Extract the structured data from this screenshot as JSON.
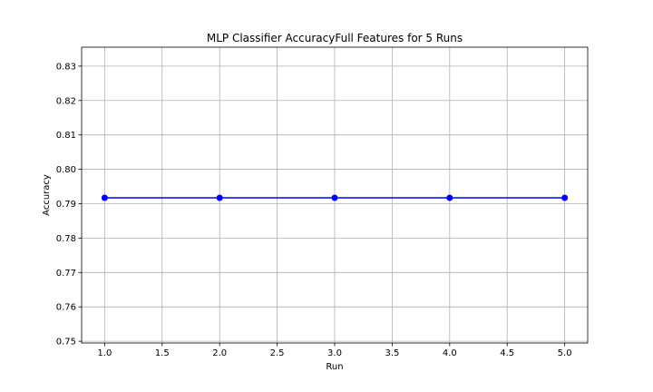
{
  "chart_data": {
    "type": "line",
    "title": "MLP Classifier AccuracyFull Features for 5 Runs",
    "xlabel": "Run",
    "ylabel": "Accuracy",
    "xlim": [
      0.8,
      5.2
    ],
    "ylim": [
      0.7495,
      0.8355
    ],
    "xticks": [
      1.0,
      1.5,
      2.0,
      2.5,
      3.0,
      3.5,
      4.0,
      4.5,
      5.0
    ],
    "xtick_labels": [
      "1.0",
      "1.5",
      "2.0",
      "2.5",
      "3.0",
      "3.5",
      "4.0",
      "4.5",
      "5.0"
    ],
    "yticks": [
      0.75,
      0.76,
      0.77,
      0.78,
      0.79,
      0.8,
      0.81,
      0.82,
      0.83
    ],
    "ytick_labels": [
      "0.75",
      "0.76",
      "0.77",
      "0.78",
      "0.79",
      "0.80",
      "0.81",
      "0.82",
      "0.83"
    ],
    "grid": true,
    "legend": "none",
    "series": [
      {
        "color": "#0000ff",
        "marker": "circle",
        "x": [
          1,
          2,
          3,
          4,
          5
        ],
        "y": [
          0.7917,
          0.7917,
          0.7917,
          0.7917,
          0.7917
        ]
      }
    ]
  }
}
